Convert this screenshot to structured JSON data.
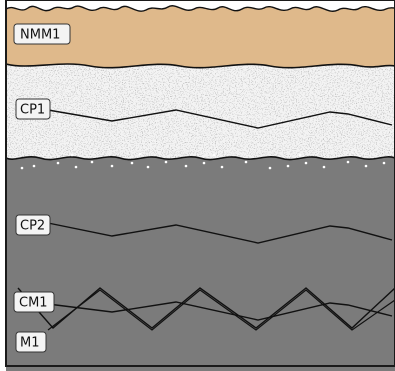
{
  "diagram": {
    "layers": [
      {
        "id": "nmm1",
        "label": "NMM1",
        "material": "brown-layer",
        "color": "#dfb98b"
      },
      {
        "id": "cp1",
        "label": "CP1",
        "material": "speckled-white-layer",
        "color": "#f3f3f3"
      },
      {
        "id": "cp2",
        "label": "CP2",
        "material": "dark-gray-layer",
        "color": "#7b7b7b"
      },
      {
        "id": "cm1",
        "label": "CM1",
        "material": "dark-gray-layer",
        "color": "#7b7b7b"
      },
      {
        "id": "m1",
        "label": "M1",
        "material": "dark-gray-layer",
        "color": "#7b7b7b"
      }
    ],
    "line_color": "#111111",
    "border_color": "#1a1a1a",
    "dot_color": "#ffffff"
  }
}
